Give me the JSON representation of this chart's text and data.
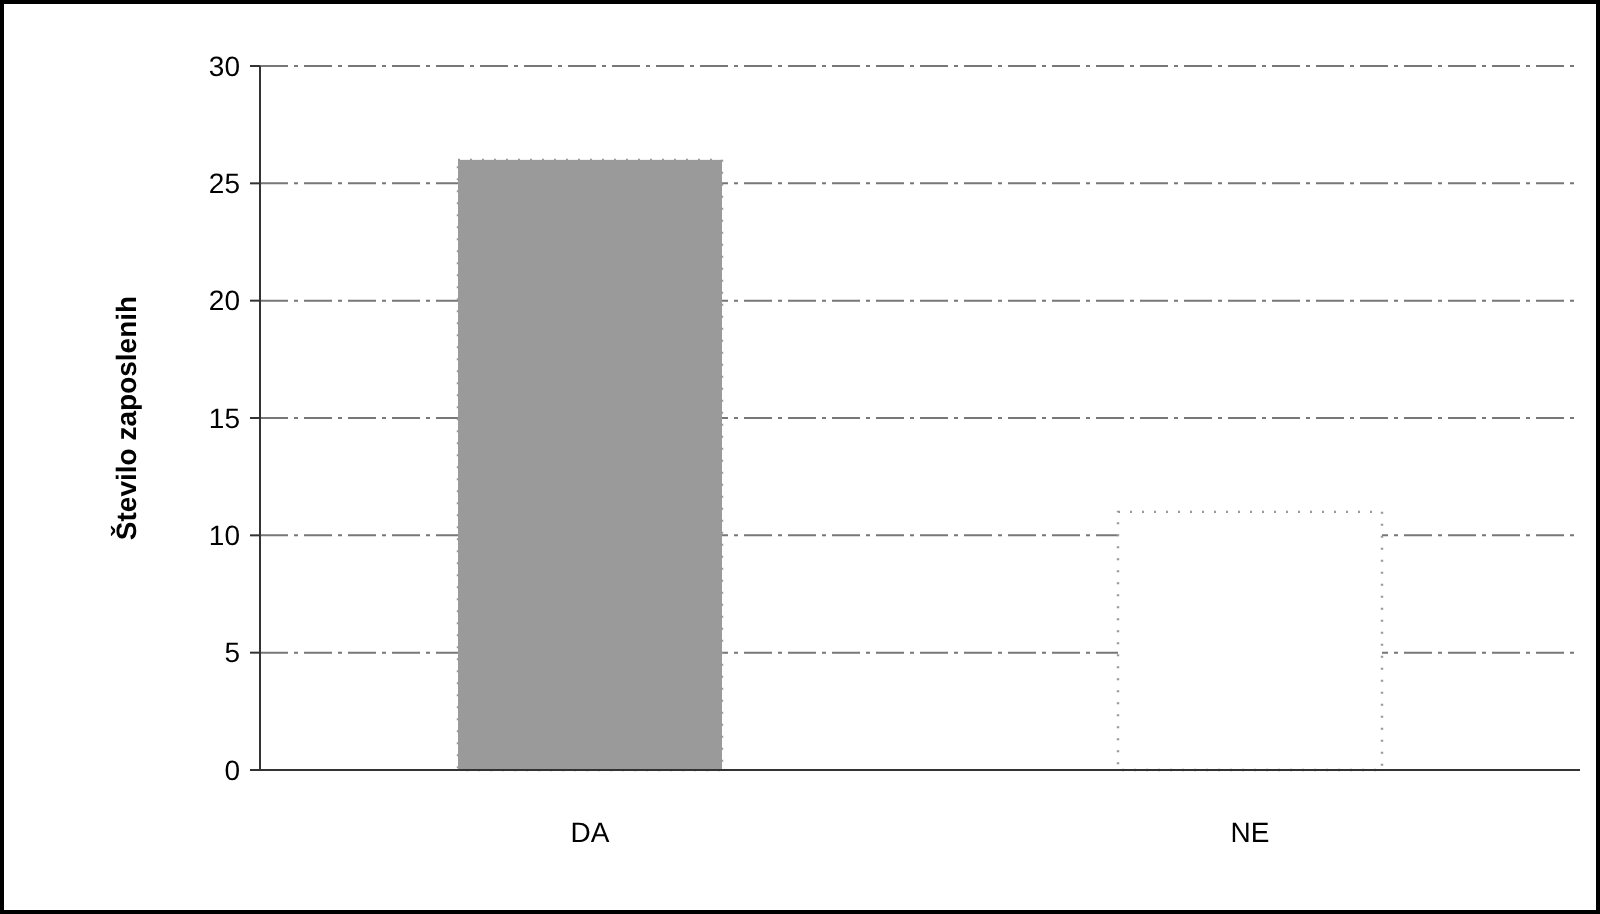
{
  "chart_data": {
    "type": "bar",
    "ylabel": "Število zaposlenih",
    "categories": [
      "DA",
      "NE"
    ],
    "values": [
      26,
      11
    ],
    "colors": [
      "#9a9a9a",
      "#ffffff"
    ],
    "ylim": [
      0,
      30
    ],
    "yticks": [
      0,
      5,
      10,
      15,
      20,
      25,
      30
    ],
    "grid": "y"
  }
}
